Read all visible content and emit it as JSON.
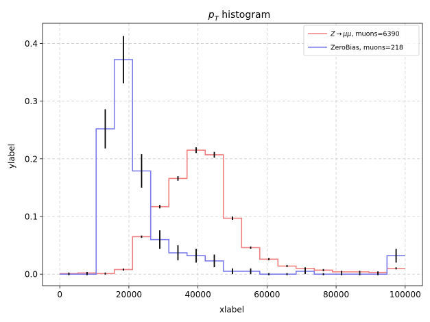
{
  "chart_data": {
    "type": "line",
    "title": "p_T histogram",
    "title_main": "p",
    "title_sub": "T",
    "title_rest": " histogram",
    "xlabel": "xlabel",
    "ylabel": "ylabel",
    "xlim": [
      -5000,
      105000
    ],
    "ylim": [
      -0.02,
      0.435
    ],
    "xticks": [
      0,
      20000,
      40000,
      60000,
      80000,
      100000
    ],
    "xtick_labels": [
      "0",
      "20000",
      "40000",
      "60000",
      "80000",
      "100000"
    ],
    "yticks": [
      0.0,
      0.1,
      0.2,
      0.3,
      0.4
    ],
    "ytick_labels": [
      "0.0",
      "0.1",
      "0.2",
      "0.3",
      "0.4"
    ],
    "grid": true,
    "legend_position": "top-right",
    "bin_edges": [
      0,
      5263,
      10526,
      15789,
      21053,
      26316,
      31579,
      36842,
      42105,
      47368,
      52632,
      57895,
      63158,
      68421,
      73684,
      78947,
      84211,
      89474,
      94737,
      100000
    ],
    "series": [
      {
        "name": "Z→μμ, muons=6390",
        "name_main": "Z → μμ",
        "name_rest": ", muons=6390",
        "color": "#f08080",
        "values": [
          0.001,
          0.002,
          0.001,
          0.008,
          0.065,
          0.117,
          0.166,
          0.215,
          0.207,
          0.097,
          0.046,
          0.026,
          0.014,
          0.01,
          0.007,
          0.004,
          0.004,
          0.003,
          0.01
        ],
        "errors": [
          0.001,
          0.001,
          0.001,
          0.001,
          0.002,
          0.003,
          0.004,
          0.005,
          0.005,
          0.003,
          0.002,
          0.001,
          0.001,
          0.001,
          0.001,
          0.001,
          0.001,
          0.001,
          0.001
        ]
      },
      {
        "name": "ZeroBias, muons=218",
        "color": "#7b7bea",
        "values": [
          0.0,
          0.0,
          0.252,
          0.372,
          0.179,
          0.06,
          0.037,
          0.032,
          0.023,
          0.005,
          0.005,
          0.0,
          0.0,
          0.005,
          0.0,
          0.0,
          0.0,
          0.0,
          0.032
        ],
        "errors": [
          0.0,
          0.0,
          0.034,
          0.041,
          0.029,
          0.016,
          0.013,
          0.012,
          0.011,
          0.005,
          0.005,
          0.0,
          0.0,
          0.005,
          0.0,
          0.0,
          0.0,
          0.0,
          0.012
        ]
      }
    ]
  }
}
